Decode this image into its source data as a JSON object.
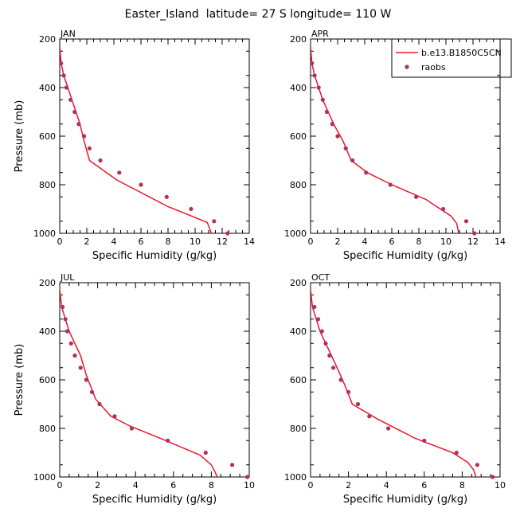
{
  "figure_title": "Easter_Island  latitude= 27 S longitude= 110 W",
  "legend": {
    "model_label": "b.e13.B1850C5CN",
    "obs_label": "raobs"
  },
  "colors": {
    "model": "#e8192c",
    "obs": "#b03060"
  },
  "chart_data": [
    {
      "type": "line",
      "panel": "JAN",
      "xlabel": "Specific Humidity (g/kg)",
      "ylabel": "Pressure (mb)",
      "xlim": [
        0,
        14
      ],
      "ylim": [
        1000,
        200
      ],
      "xticks": [
        0,
        2,
        4,
        6,
        8,
        10,
        12,
        14
      ],
      "yticks": [
        200,
        400,
        600,
        800,
        1000
      ],
      "series": [
        {
          "name": "b.e13.B1850C5CN",
          "style": "line",
          "x": [
            0.0,
            0.1,
            0.3,
            0.6,
            0.9,
            1.2,
            1.5,
            1.8,
            2.2,
            4.2,
            8.0,
            10.9,
            11.1,
            11.3
          ],
          "y": [
            230,
            300,
            350,
            400,
            450,
            500,
            550,
            620,
            700,
            780,
            890,
            955,
            985,
            1015
          ]
        },
        {
          "name": "raobs",
          "style": "markers",
          "x": [
            0.1,
            0.3,
            0.5,
            0.8,
            1.1,
            1.4,
            1.8,
            2.2,
            3.0,
            4.4,
            6.0,
            7.9,
            9.7,
            11.4,
            12.4
          ],
          "y": [
            300,
            350,
            400,
            450,
            500,
            550,
            600,
            650,
            700,
            750,
            800,
            850,
            900,
            950,
            1000
          ]
        }
      ]
    },
    {
      "type": "line",
      "panel": "APR",
      "xlabel": "Specific Humidity (g/kg)",
      "ylabel": "",
      "xlim": [
        0,
        14
      ],
      "ylim": [
        1000,
        200
      ],
      "xticks": [
        0,
        2,
        4,
        6,
        8,
        10,
        12,
        14
      ],
      "yticks": [
        200,
        400,
        600,
        800,
        1000
      ],
      "series": [
        {
          "name": "b.e13.B1850C5CN",
          "style": "line",
          "x": [
            0.0,
            0.1,
            0.3,
            0.6,
            0.9,
            1.3,
            1.8,
            2.4,
            3.0,
            4.2,
            6.0,
            8.5,
            10.4,
            10.8,
            11.0
          ],
          "y": [
            230,
            300,
            350,
            400,
            450,
            500,
            560,
            620,
            700,
            750,
            800,
            860,
            930,
            960,
            1015
          ]
        },
        {
          "name": "raobs",
          "style": "markers",
          "x": [
            0.1,
            0.3,
            0.6,
            0.9,
            1.2,
            1.6,
            2.0,
            2.6,
            3.1,
            4.1,
            5.9,
            7.8,
            9.8,
            11.5,
            12.1
          ],
          "y": [
            300,
            350,
            400,
            450,
            500,
            550,
            600,
            650,
            700,
            750,
            800,
            850,
            900,
            950,
            1000
          ]
        }
      ]
    },
    {
      "type": "line",
      "panel": "JUL",
      "xlabel": "Specific Humidity (g/kg)",
      "ylabel": "Pressure (mb)",
      "xlim": [
        0,
        10
      ],
      "ylim": [
        1000,
        200
      ],
      "xticks": [
        0,
        2,
        4,
        6,
        8,
        10
      ],
      "yticks": [
        200,
        400,
        600,
        800,
        1000
      ],
      "series": [
        {
          "name": "b.e13.B1850C5CN",
          "style": "line",
          "x": [
            0.0,
            0.1,
            0.3,
            0.5,
            0.8,
            1.1,
            1.4,
            1.9,
            2.7,
            3.7,
            5.6,
            7.4,
            8.0,
            8.2,
            8.4
          ],
          "y": [
            230,
            300,
            350,
            400,
            450,
            500,
            580,
            680,
            750,
            790,
            850,
            910,
            950,
            980,
            1015
          ]
        },
        {
          "name": "raobs",
          "style": "markers",
          "x": [
            0.15,
            0.3,
            0.4,
            0.6,
            0.8,
            1.1,
            1.4,
            1.7,
            2.1,
            2.9,
            3.8,
            5.7,
            7.7,
            9.1,
            9.9
          ],
          "y": [
            300,
            350,
            400,
            450,
            500,
            550,
            600,
            650,
            700,
            750,
            800,
            850,
            900,
            950,
            1000
          ]
        }
      ]
    },
    {
      "type": "line",
      "panel": "OCT",
      "xlabel": "Specific Humidity (g/kg)",
      "ylabel": "",
      "xlim": [
        0,
        10
      ],
      "ylim": [
        1000,
        200
      ],
      "xticks": [
        0,
        2,
        4,
        6,
        8,
        10
      ],
      "yticks": [
        200,
        400,
        600,
        800,
        1000
      ],
      "series": [
        {
          "name": "b.e13.B1850C5CN",
          "style": "line",
          "x": [
            0.0,
            0.1,
            0.3,
            0.5,
            0.8,
            1.1,
            1.4,
            1.8,
            2.2,
            3.5,
            5.5,
            7.5,
            8.3,
            8.6,
            8.8
          ],
          "y": [
            230,
            300,
            350,
            400,
            450,
            500,
            550,
            620,
            700,
            760,
            840,
            900,
            940,
            970,
            1015
          ]
        },
        {
          "name": "raobs",
          "style": "markers",
          "x": [
            0.2,
            0.4,
            0.6,
            0.8,
            1.0,
            1.2,
            1.6,
            2.0,
            2.5,
            3.1,
            4.1,
            6.0,
            7.7,
            8.8,
            9.6
          ],
          "y": [
            300,
            350,
            400,
            450,
            500,
            550,
            600,
            650,
            700,
            750,
            800,
            850,
            900,
            950,
            1000
          ]
        }
      ]
    }
  ]
}
